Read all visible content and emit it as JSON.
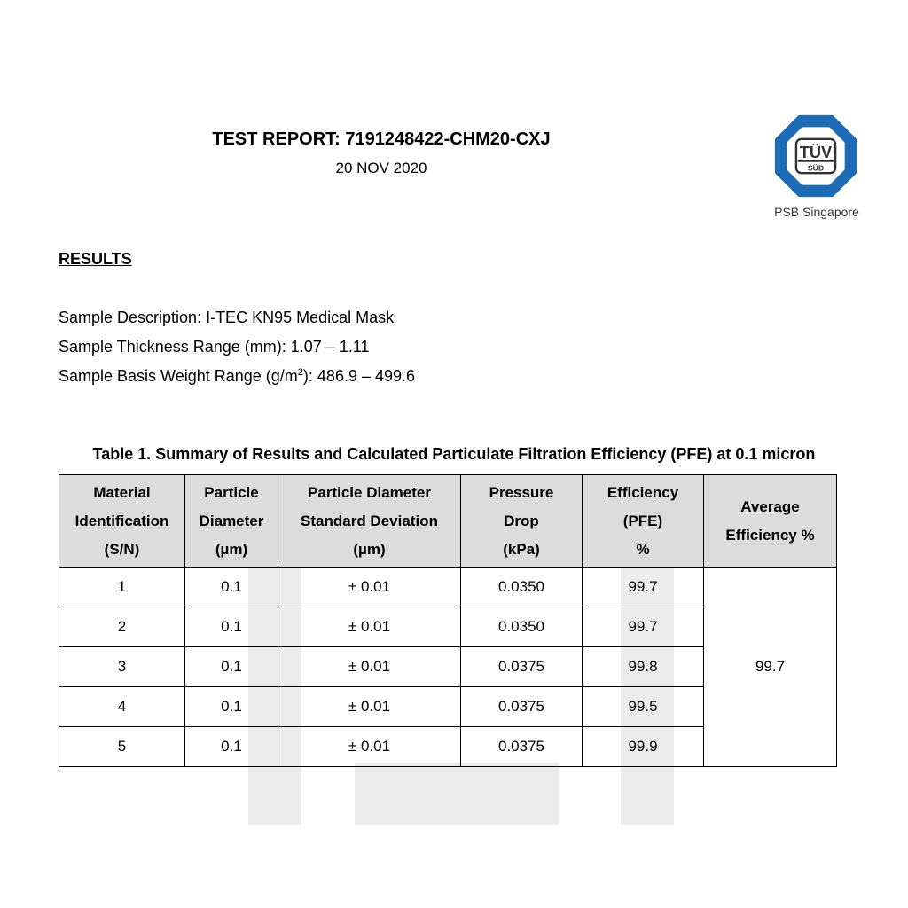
{
  "header": {
    "title": "TEST REPORT:  7191248422-CHM20-CXJ",
    "date": "20 NOV 2020",
    "logo_text": "TÜV SÜD",
    "logo_caption": "PSB Singapore",
    "logo_color": "#1c6db5"
  },
  "section": "RESULTS",
  "sample": {
    "description": "Sample Description: I-TEC KN95 Medical Mask",
    "thickness": "Sample Thickness Range (mm): 1.07 – 1.11",
    "weight_prefix": "Sample Basis Weight Range (g/m",
    "weight_sup": "2",
    "weight_suffix": "): 486.9 – 499.6"
  },
  "table": {
    "caption": "Table 1. Summary of Results and Calculated Particulate Filtration Efficiency (PFE) at 0.1 micron",
    "headers": [
      [
        "Material",
        "Identification",
        "(S/N)"
      ],
      [
        "Particle",
        "Diameter",
        "(µm)"
      ],
      [
        "Particle Diameter",
        "Standard Deviation",
        "(µm)"
      ],
      [
        "Pressure",
        "Drop",
        "(kPa)"
      ],
      [
        "Efficiency",
        "(PFE)",
        "%"
      ],
      [
        "Average",
        "Efficiency  %"
      ]
    ],
    "rows": [
      [
        "1",
        "0.1",
        "± 0.01",
        "0.0350",
        "99.7"
      ],
      [
        "2",
        "0.1",
        "± 0.01",
        "0.0350",
        "99.7"
      ],
      [
        "3",
        "0.1",
        "± 0.01",
        "0.0375",
        "99.8"
      ],
      [
        "4",
        "0.1",
        "± 0.01",
        "0.0375",
        "99.5"
      ],
      [
        "5",
        "0.1",
        "± 0.01",
        "0.0375",
        "99.9"
      ]
    ],
    "average": "99.7"
  }
}
